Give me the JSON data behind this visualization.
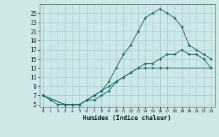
{
  "xlabel": "Humidex (Indice chaleur)",
  "ylabel": "",
  "bg_color": "#cce8e8",
  "grid_color": "#aacccc",
  "line_color": "#1a6b6b",
  "xlim": [
    -0.5,
    23.5
  ],
  "ylim": [
    4.5,
    27
  ],
  "yticks": [
    5,
    7,
    9,
    11,
    13,
    15,
    17,
    19,
    21,
    23,
    25
  ],
  "xticks": [
    0,
    1,
    2,
    3,
    4,
    5,
    6,
    7,
    8,
    9,
    10,
    11,
    12,
    13,
    14,
    15,
    16,
    17,
    18,
    19,
    20,
    21,
    22,
    23
  ],
  "curve1_x": [
    0,
    1,
    2,
    3,
    4,
    5,
    6,
    7,
    8,
    9,
    10,
    11,
    12,
    13,
    14,
    15,
    16,
    17,
    23
  ],
  "curve1_y": [
    7,
    6,
    5,
    5,
    5,
    5,
    6,
    7,
    8,
    9,
    10,
    11,
    12,
    13,
    13,
    13,
    13,
    13,
    13
  ],
  "curve2_x": [
    0,
    3,
    4,
    5,
    6,
    7,
    8,
    9,
    10,
    11,
    12,
    13,
    14,
    15,
    16,
    17,
    18,
    19,
    20,
    21,
    22,
    23
  ],
  "curve2_y": [
    7,
    5,
    5,
    5,
    6,
    7,
    8,
    10,
    13,
    16,
    18,
    21,
    24,
    25,
    26,
    25,
    24,
    22,
    18,
    17,
    16,
    15
  ],
  "curve3_x": [
    0,
    3,
    4,
    5,
    6,
    7,
    8,
    9,
    10,
    11,
    12,
    13,
    14,
    15,
    16,
    17,
    18,
    19,
    20,
    21,
    22,
    23
  ],
  "curve3_y": [
    7,
    5,
    5,
    5,
    6,
    6,
    7,
    8,
    10,
    11,
    12,
    13,
    14,
    14,
    15,
    16,
    16,
    17,
    16,
    16,
    15,
    13
  ]
}
